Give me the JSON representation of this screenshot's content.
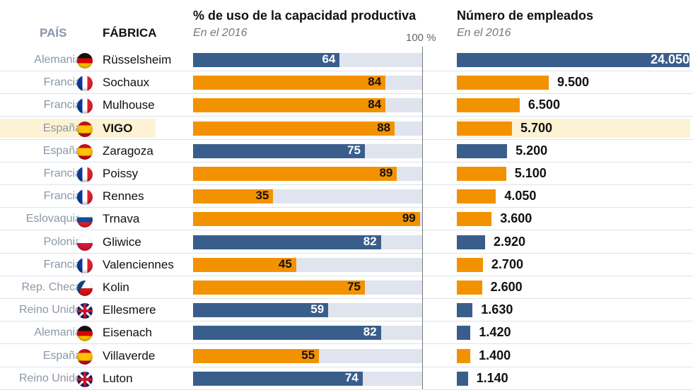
{
  "chart_data": {
    "type": "bar",
    "header": {
      "country": "PAÍS",
      "plant": "FÁBRICA"
    },
    "panels": [
      {
        "title": "% de uso de la capacidad productiva",
        "subtitle": "En el 2016",
        "reference_label": "100 %",
        "xlim": [
          0,
          100
        ]
      },
      {
        "title": "Número de empleados",
        "subtitle": "En el 2016",
        "xlim": [
          0,
          24050
        ]
      }
    ],
    "colors": {
      "blue": "#3a5e8c",
      "orange": "#f39200",
      "highlight": "#fdf3d4"
    },
    "rows": [
      {
        "country": "Alemania",
        "flag": "de",
        "plant": "Rüsselsheim",
        "capacity": 64,
        "employees": 24050,
        "employees_label": "24.050",
        "color": "blue"
      },
      {
        "country": "Francia",
        "flag": "fr",
        "plant": "Sochaux",
        "capacity": 84,
        "employees": 9500,
        "employees_label": "9.500",
        "color": "orange"
      },
      {
        "country": "Francia",
        "flag": "fr",
        "plant": "Mulhouse",
        "capacity": 84,
        "employees": 6500,
        "employees_label": "6.500",
        "color": "orange"
      },
      {
        "country": "España",
        "flag": "es",
        "plant": "VIGO",
        "capacity": 88,
        "employees": 5700,
        "employees_label": "5.700",
        "color": "orange",
        "highlight": true
      },
      {
        "country": "España",
        "flag": "es",
        "plant": "Zaragoza",
        "capacity": 75,
        "employees": 5200,
        "employees_label": "5.200",
        "color": "blue"
      },
      {
        "country": "Francia",
        "flag": "fr",
        "plant": "Poissy",
        "capacity": 89,
        "employees": 5100,
        "employees_label": "5.100",
        "color": "orange"
      },
      {
        "country": "Francia",
        "flag": "fr",
        "plant": "Rennes",
        "capacity": 35,
        "employees": 4050,
        "employees_label": "4.050",
        "color": "orange"
      },
      {
        "country": "Eslovaquia",
        "flag": "sk",
        "plant": "Trnava",
        "capacity": 99,
        "employees": 3600,
        "employees_label": "3.600",
        "color": "orange"
      },
      {
        "country": "Polonia",
        "flag": "pl",
        "plant": "Gliwice",
        "capacity": 82,
        "employees": 2920,
        "employees_label": "2.920",
        "color": "blue"
      },
      {
        "country": "Francia",
        "flag": "fr",
        "plant": "Valenciennes",
        "capacity": 45,
        "employees": 2700,
        "employees_label": "2.700",
        "color": "orange"
      },
      {
        "country": "Rep. Checa",
        "flag": "cz",
        "plant": "Kolin",
        "capacity": 75,
        "employees": 2600,
        "employees_label": "2.600",
        "color": "orange"
      },
      {
        "country": "Reino Unido",
        "flag": "gb",
        "plant": "Ellesmere",
        "capacity": 59,
        "employees": 1630,
        "employees_label": "1.630",
        "color": "blue"
      },
      {
        "country": "Alemania",
        "flag": "de",
        "plant": "Eisenach",
        "capacity": 82,
        "employees": 1420,
        "employees_label": "1.420",
        "color": "blue"
      },
      {
        "country": "España",
        "flag": "es",
        "plant": "Villaverde",
        "capacity": 55,
        "employees": 1400,
        "employees_label": "1.400",
        "color": "orange"
      },
      {
        "country": "Reino Unido",
        "flag": "gb",
        "plant": "Luton",
        "capacity": 74,
        "employees": 1140,
        "employees_label": "1.140",
        "color": "blue"
      }
    ]
  }
}
